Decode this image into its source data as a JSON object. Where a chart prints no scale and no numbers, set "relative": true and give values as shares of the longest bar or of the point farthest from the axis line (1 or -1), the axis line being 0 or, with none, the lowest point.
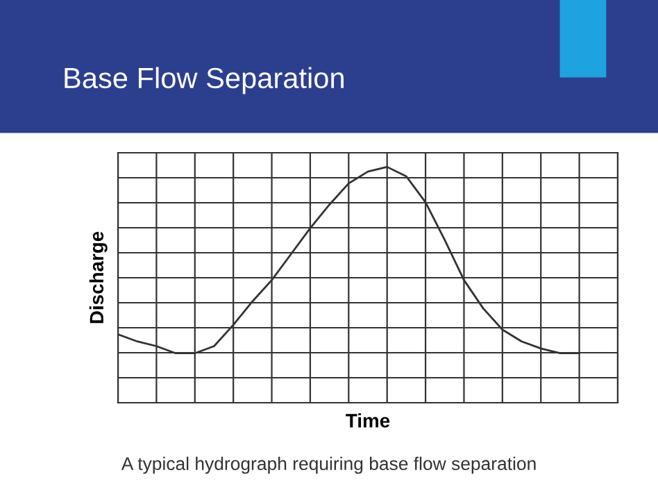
{
  "chart_data": {
    "type": "line",
    "title": "Base Flow Separation",
    "xlabel": "Time",
    "ylabel": "Discharge",
    "annotations": [
      "A typical hydrograph requiring base flow separation"
    ],
    "relative": true,
    "grid": true,
    "legend": false,
    "marker": "none",
    "line_style": "solid",
    "categories": [
      null,
      null,
      null,
      null,
      null,
      null,
      null,
      null,
      null,
      null,
      null,
      null,
      null,
      null,
      null,
      null,
      null,
      null,
      null,
      null,
      null,
      null,
      null,
      null,
      null
    ],
    "series": [
      {
        "color": "#333333",
        "values": [
          0.29,
          0.26,
          0.24,
          0.21,
          0.21,
          0.24,
          0.33,
          0.43,
          0.52,
          0.63,
          0.74,
          0.84,
          0.93,
          0.98,
          1,
          0.96,
          0.85,
          0.69,
          0.52,
          0.4,
          0.31,
          0.26,
          0.23,
          0.21,
          0.21
        ]
      }
    ]
  }
}
